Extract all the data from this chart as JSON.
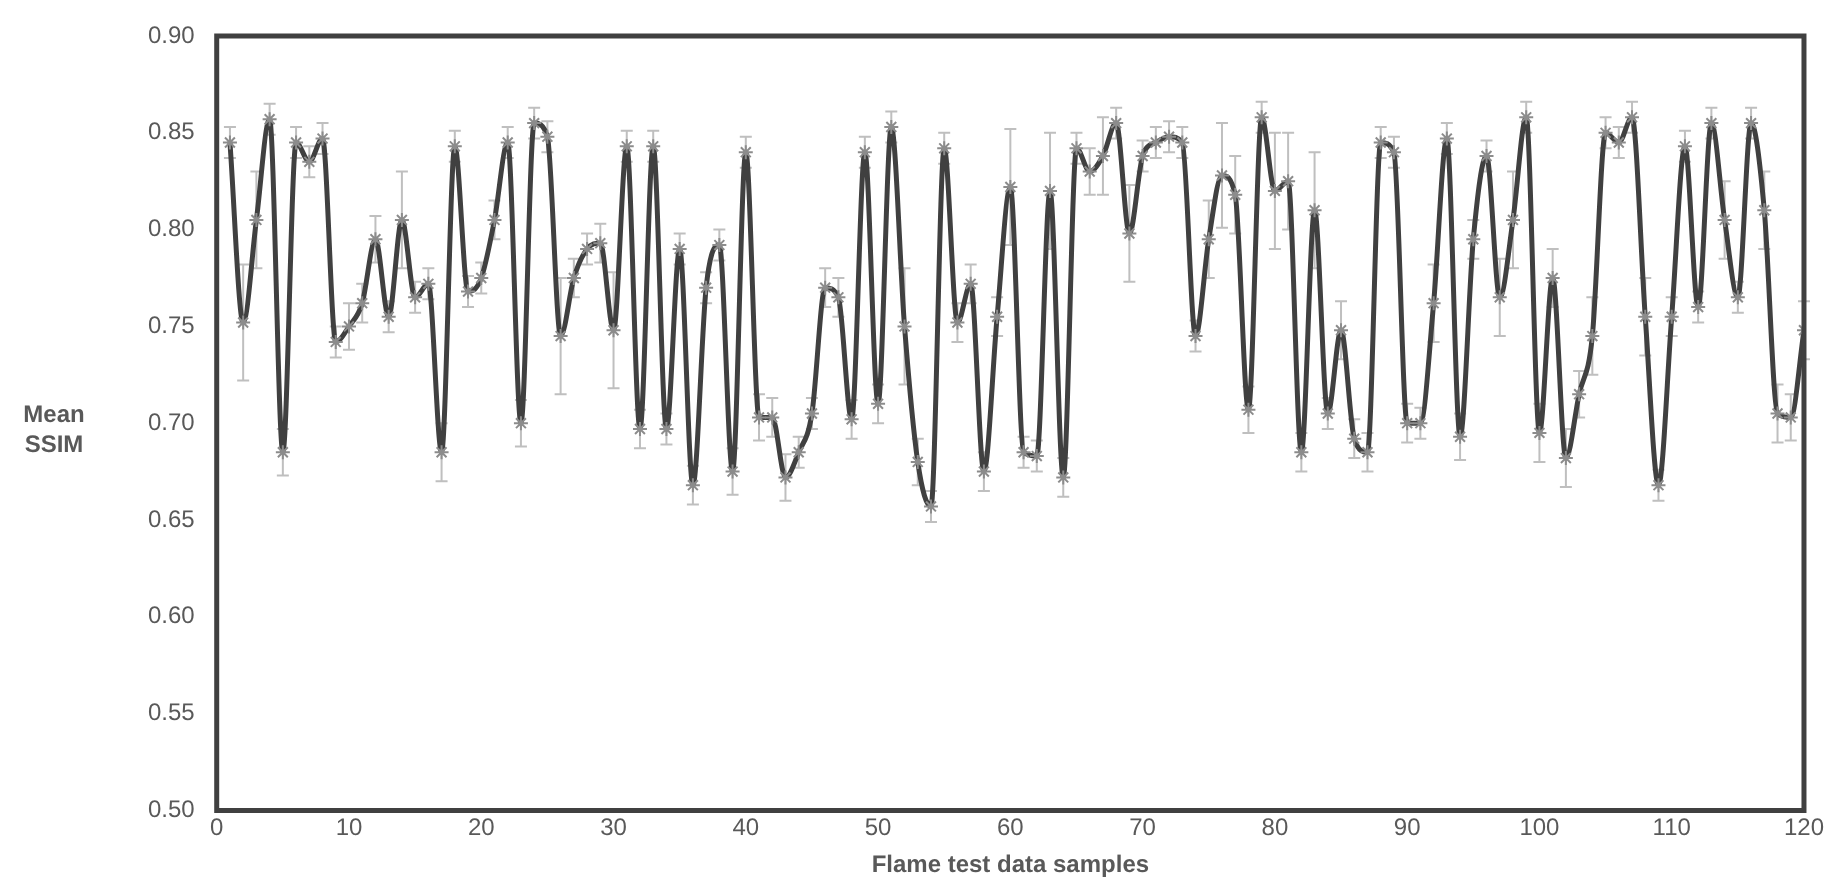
{
  "chart_data": {
    "type": "line",
    "xlabel": "Flame test data samples",
    "ylabel": "Mean SSIM",
    "x": [
      1,
      2,
      3,
      4,
      5,
      6,
      7,
      8,
      9,
      10,
      11,
      12,
      13,
      14,
      15,
      16,
      17,
      18,
      19,
      20,
      21,
      22,
      23,
      24,
      25,
      26,
      27,
      28,
      29,
      30,
      31,
      32,
      33,
      34,
      35,
      36,
      37,
      38,
      39,
      40,
      41,
      42,
      43,
      44,
      45,
      46,
      47,
      48,
      49,
      50,
      51,
      52,
      53,
      54,
      55,
      56,
      57,
      58,
      59,
      60,
      61,
      62,
      63,
      64,
      65,
      66,
      67,
      68,
      69,
      70,
      71,
      72,
      73,
      74,
      75,
      76,
      77,
      78,
      79,
      80,
      81,
      82,
      83,
      84,
      85,
      86,
      87,
      88,
      89,
      90,
      91,
      92,
      93,
      94,
      95,
      96,
      97,
      98,
      99,
      100,
      101,
      102,
      103,
      104,
      105,
      106,
      107,
      108,
      109,
      110,
      111,
      112,
      113,
      114,
      115,
      116,
      117,
      118,
      119,
      120
    ],
    "series": [
      {
        "color": "#404040",
        "values": [
          0.845,
          0.752,
          0.805,
          0.857,
          0.685,
          0.845,
          0.835,
          0.847,
          0.742,
          0.75,
          0.762,
          0.795,
          0.755,
          0.805,
          0.765,
          0.772,
          0.685,
          0.843,
          0.768,
          0.775,
          0.805,
          0.845,
          0.7,
          0.855,
          0.848,
          0.745,
          0.775,
          0.79,
          0.793,
          0.748,
          0.843,
          0.697,
          0.843,
          0.697,
          0.79,
          0.668,
          0.77,
          0.792,
          0.675,
          0.84,
          0.703,
          0.703,
          0.672,
          0.685,
          0.705,
          0.77,
          0.765,
          0.702,
          0.84,
          0.71,
          0.853,
          0.75,
          0.68,
          0.657,
          0.842,
          0.752,
          0.772,
          0.675,
          0.755,
          0.822,
          0.685,
          0.683,
          0.82,
          0.672,
          0.842,
          0.83,
          0.838,
          0.855,
          0.798,
          0.838,
          0.845,
          0.848,
          0.845,
          0.745,
          0.795,
          0.828,
          0.818,
          0.707,
          0.858,
          0.82,
          0.825,
          0.685,
          0.81,
          0.705,
          0.748,
          0.692,
          0.685,
          0.845,
          0.84,
          0.7,
          0.7,
          0.762,
          0.847,
          0.693,
          0.795,
          0.838,
          0.765,
          0.805,
          0.858,
          0.695,
          0.775,
          0.682,
          0.715,
          0.745,
          0.85,
          0.845,
          0.858,
          0.755,
          0.668,
          0.755,
          0.843,
          0.76,
          0.855,
          0.805,
          0.765,
          0.855,
          0.81,
          0.705,
          0.703,
          0.748
        ],
        "errors": [
          0.008,
          0.03,
          0.025,
          0.008,
          0.012,
          0.008,
          0.008,
          0.008,
          0.008,
          0.012,
          0.01,
          0.012,
          0.008,
          0.025,
          0.008,
          0.008,
          0.015,
          0.008,
          0.008,
          0.008,
          0.01,
          0.008,
          0.012,
          0.008,
          0.008,
          0.03,
          0.01,
          0.008,
          0.01,
          0.03,
          0.008,
          0.01,
          0.008,
          0.008,
          0.008,
          0.01,
          0.008,
          0.008,
          0.012,
          0.008,
          0.012,
          0.01,
          0.012,
          0.008,
          0.008,
          0.01,
          0.01,
          0.01,
          0.008,
          0.01,
          0.008,
          0.03,
          0.012,
          0.008,
          0.008,
          0.01,
          0.01,
          0.01,
          0.01,
          0.03,
          0.008,
          0.008,
          0.03,
          0.01,
          0.008,
          0.012,
          0.02,
          0.008,
          0.025,
          0.008,
          0.008,
          0.008,
          0.008,
          0.008,
          0.02,
          0.027,
          0.02,
          0.012,
          0.008,
          0.03,
          0.025,
          0.01,
          0.03,
          0.008,
          0.015,
          0.01,
          0.01,
          0.008,
          0.008,
          0.01,
          0.008,
          0.02,
          0.008,
          0.012,
          0.01,
          0.008,
          0.02,
          0.025,
          0.008,
          0.015,
          0.015,
          0.015,
          0.012,
          0.02,
          0.008,
          0.008,
          0.008,
          0.02,
          0.008,
          0.01,
          0.008,
          0.008,
          0.008,
          0.02,
          0.008,
          0.008,
          0.02,
          0.015,
          0.012,
          0.015
        ]
      }
    ],
    "xlim": [
      0,
      120
    ],
    "xticks": [
      0,
      10,
      20,
      30,
      40,
      50,
      60,
      70,
      80,
      90,
      100,
      110,
      120
    ],
    "ylim": [
      0.5,
      0.9
    ],
    "yticks": [
      {
        "value": 0.5,
        "label": "0.50"
      },
      {
        "value": 0.55,
        "label": "0.55"
      },
      {
        "value": 0.6,
        "label": "0.60"
      },
      {
        "value": 0.65,
        "label": "0.65"
      },
      {
        "value": 0.7,
        "label": "0.70"
      },
      {
        "value": 0.75,
        "label": "0.75"
      },
      {
        "value": 0.8,
        "label": "0.80"
      },
      {
        "value": 0.85,
        "label": "0.85"
      },
      {
        "value": 0.9,
        "label": "0.90"
      }
    ],
    "marker": "cross",
    "grid": false,
    "legend": false
  }
}
